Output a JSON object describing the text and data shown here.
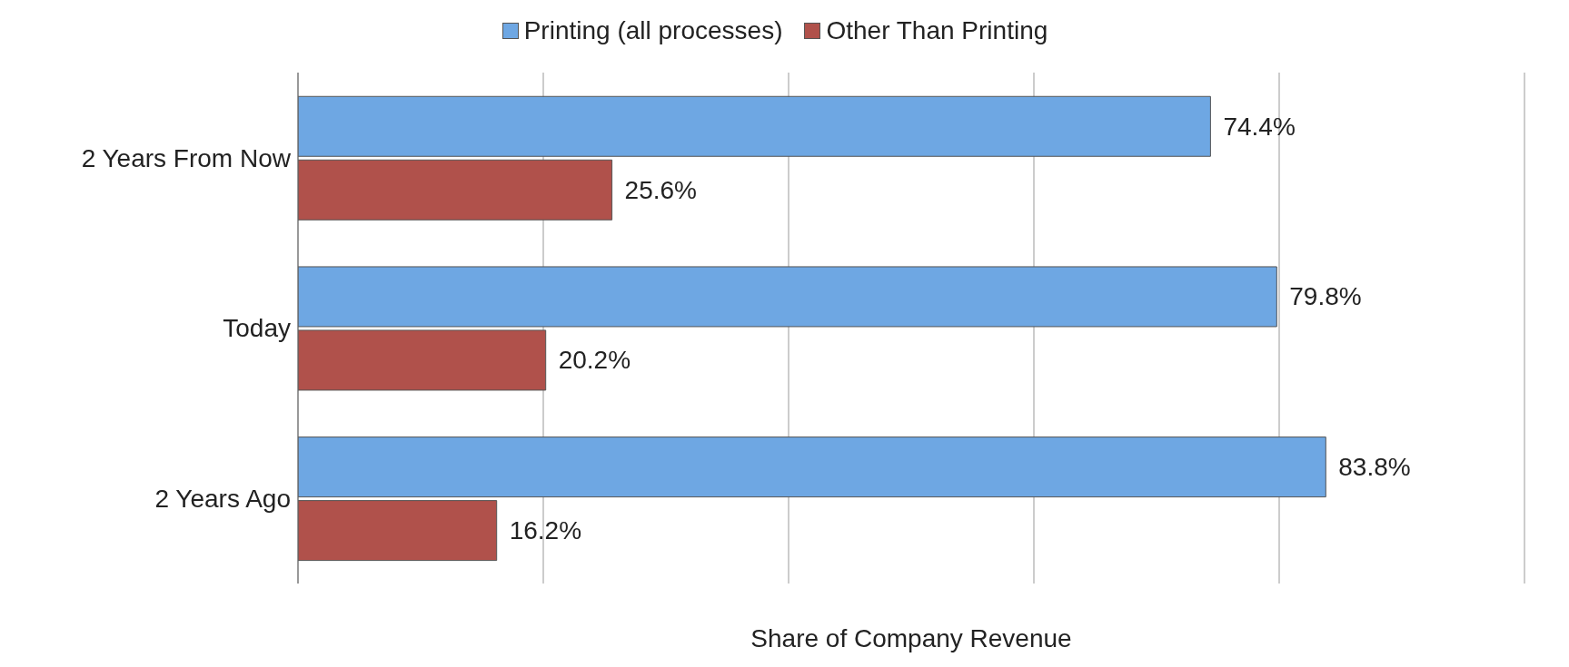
{
  "chart_data": {
    "type": "bar",
    "orientation": "horizontal",
    "xlabel": "Share of Company Revenue",
    "categories": [
      "2 Years From Now",
      "Today",
      "2 Years Ago"
    ],
    "series": [
      {
        "name": "Printing (all processes)",
        "color": "#6ea7e3",
        "values": [
          74.4,
          79.8,
          83.8
        ],
        "value_labels": [
          "74.4%",
          "79.8%",
          "83.8%"
        ]
      },
      {
        "name": "Other Than Printing",
        "color": "#b0514b",
        "values": [
          25.6,
          20.2,
          16.2
        ],
        "value_labels": [
          "25.6%",
          "20.2%",
          "16.2%"
        ]
      }
    ],
    "xlim": [
      0,
      100
    ],
    "tick_labels": "y",
    "grid": "x",
    "legend": "top"
  }
}
